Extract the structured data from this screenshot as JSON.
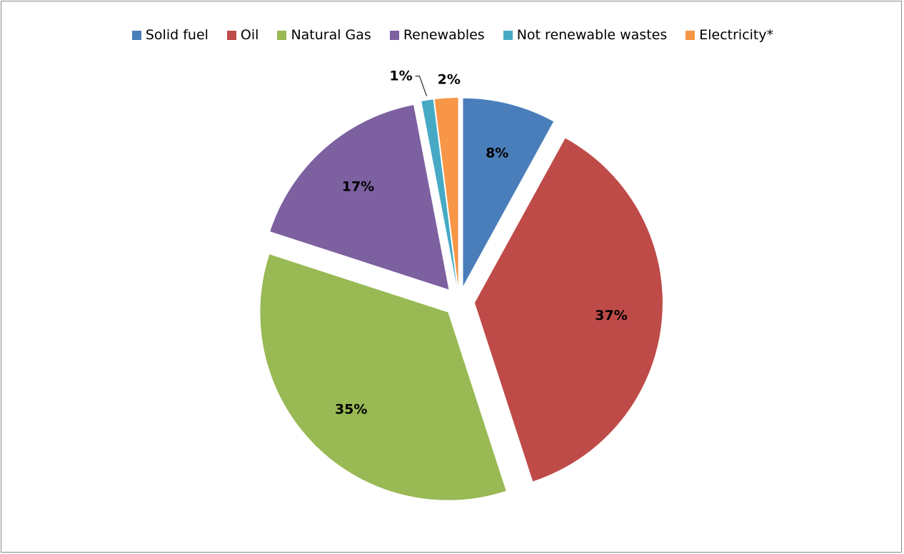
{
  "chart_data": {
    "type": "pie",
    "title": "",
    "legend_position": "top",
    "exploded": true,
    "start_angle_deg": 0,
    "direction": "clockwise",
    "slices": [
      {
        "name": "Solid fuel",
        "value": 8,
        "label": "8%",
        "color": "#4a7ebb"
      },
      {
        "name": "Oil",
        "value": 37,
        "label": "37%",
        "color": "#be4b48"
      },
      {
        "name": "Natural Gas",
        "value": 35,
        "label": "35%",
        "color": "#98b954"
      },
      {
        "name": "Renewables",
        "value": 17,
        "label": "17%",
        "color": "#7d60a0"
      },
      {
        "name": "Not renewable wastes",
        "value": 1,
        "label": "1%",
        "color": "#46aac5"
      },
      {
        "name": "Electricity*",
        "value": 2,
        "label": "2%",
        "color": "#f79646"
      }
    ]
  }
}
